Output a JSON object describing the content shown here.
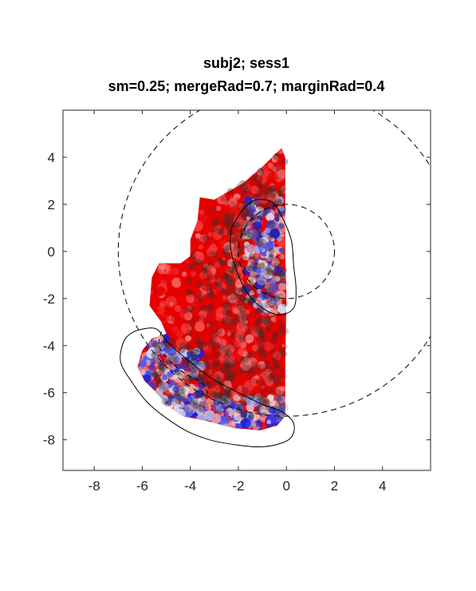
{
  "chart_data": {
    "type": "scatter",
    "title": [
      "subj2; sess1",
      "sm=0.25; mergeRad=0.7; marginRad=0.4"
    ],
    "xlabel": "",
    "ylabel": "",
    "xlim": [
      -9.3,
      6
    ],
    "ylim": [
      -9.3,
      6
    ],
    "xticks": [
      -8,
      -6,
      -4,
      -2,
      0,
      2,
      4
    ],
    "yticks": [
      4,
      2,
      0,
      -2,
      -4,
      -6,
      -8
    ],
    "xtick_labels": [
      "-8",
      "-6",
      "-4",
      "-2",
      "0",
      "2",
      "4"
    ],
    "ytick_labels": [
      "4",
      "2",
      "0",
      "-2",
      "-4",
      "-6",
      "-8"
    ],
    "grid": false,
    "box": true,
    "colors": {
      "positive": "#e60000",
      "light_positive": "#f4a3a3",
      "negative": "#1f1fd6",
      "light_negative": "#a9a9e6",
      "overlay_points": "#303030",
      "contours": "#000000"
    },
    "dashed_circles": [
      {
        "center": [
          0,
          0
        ],
        "radius": 7
      },
      {
        "center": [
          0,
          0
        ],
        "radius": 2
      }
    ],
    "region_outline": [
      [
        -0.2,
        4.4
      ],
      [
        -1.0,
        3.6
      ],
      [
        -1.8,
        2.9
      ],
      [
        -2.5,
        2.5
      ],
      [
        -3.0,
        2.2
      ],
      [
        -3.6,
        2.3
      ],
      [
        -3.7,
        1.3
      ],
      [
        -4.0,
        0.5
      ],
      [
        -4.0,
        -0.2
      ],
      [
        -4.4,
        -0.5
      ],
      [
        -5.3,
        -0.5
      ],
      [
        -5.6,
        -1.1
      ],
      [
        -5.7,
        -2.3
      ],
      [
        -5.2,
        -3.0
      ],
      [
        -5.0,
        -3.5
      ],
      [
        -5.6,
        -3.7
      ],
      [
        -6.0,
        -4.2
      ],
      [
        -6.2,
        -4.9
      ],
      [
        -5.9,
        -5.5
      ],
      [
        -5.4,
        -6.0
      ],
      [
        -5.0,
        -6.5
      ],
      [
        -4.3,
        -7.0
      ],
      [
        -3.3,
        -7.2
      ],
      [
        -2.2,
        -7.5
      ],
      [
        -1.1,
        -7.6
      ],
      [
        -0.4,
        -7.4
      ],
      [
        -0.05,
        -7.0
      ],
      [
        -0.05,
        -5.0
      ],
      [
        0,
        -2.0
      ],
      [
        -0.05,
        0
      ],
      [
        -0.05,
        2.0
      ],
      [
        -0.05,
        4.0
      ]
    ],
    "contours": [
      {
        "closed": true,
        "points": [
          [
            -1.2,
            2.2
          ],
          [
            -0.6,
            2.1
          ],
          [
            -0.2,
            1.5
          ],
          [
            0.2,
            0.5
          ],
          [
            0.3,
            -0.6
          ],
          [
            0.4,
            -1.6
          ],
          [
            0.3,
            -2.4
          ],
          [
            -0.3,
            -2.7
          ],
          [
            -1.0,
            -2.4
          ],
          [
            -1.6,
            -1.8
          ],
          [
            -2.0,
            -1.0
          ],
          [
            -2.3,
            0
          ],
          [
            -2.3,
            0.9
          ],
          [
            -2.0,
            1.5
          ],
          [
            -1.6,
            2.0
          ]
        ]
      },
      {
        "closed": true,
        "points": [
          [
            -6.0,
            -3.3
          ],
          [
            -5.4,
            -3.3
          ],
          [
            -4.9,
            -3.9
          ],
          [
            -4.0,
            -4.7
          ],
          [
            -3.1,
            -5.4
          ],
          [
            -2.0,
            -6.0
          ],
          [
            -1.0,
            -6.5
          ],
          [
            -0.2,
            -6.8
          ],
          [
            0.3,
            -7.3
          ],
          [
            0.2,
            -7.9
          ],
          [
            -0.4,
            -8.2
          ],
          [
            -1.2,
            -8.3
          ],
          [
            -2.2,
            -8.2
          ],
          [
            -3.2,
            -8.0
          ],
          [
            -4.2,
            -7.6
          ],
          [
            -5.1,
            -7.0
          ],
          [
            -5.8,
            -6.4
          ],
          [
            -6.4,
            -5.6
          ],
          [
            -6.9,
            -4.7
          ],
          [
            -6.8,
            -3.9
          ],
          [
            -6.5,
            -3.5
          ]
        ]
      },
      {
        "closed": false,
        "points": [
          [
            -5.2,
            -3.4
          ],
          [
            -5.3,
            -4.0
          ],
          [
            -4.9,
            -4.6
          ],
          [
            -4.2,
            -5.2
          ],
          [
            -3.5,
            -5.6
          ],
          [
            -3.2,
            -6.2
          ]
        ]
      }
    ]
  }
}
